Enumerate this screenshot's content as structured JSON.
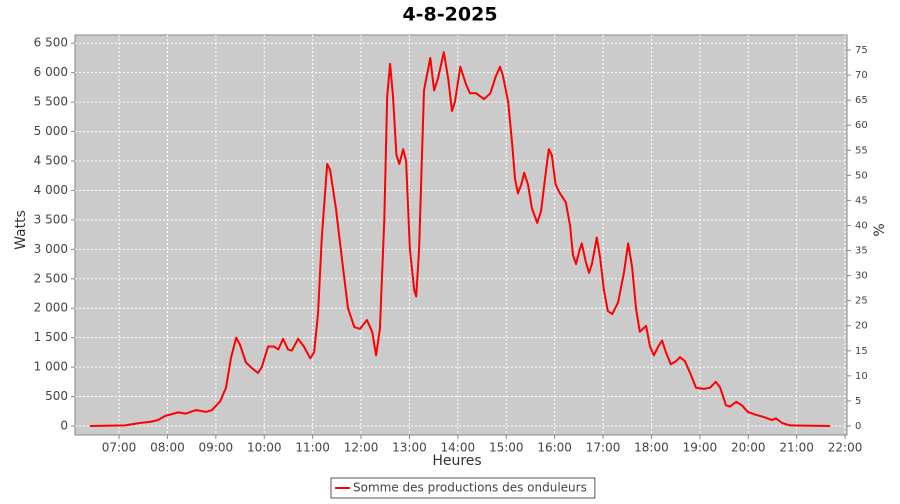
{
  "chart_data": {
    "type": "line",
    "title": "4-8-2025",
    "x_label": "Heures",
    "y_label": "Watts",
    "y2_label": "%",
    "background": "#cbcbcb",
    "grid": true,
    "xlim": [
      6.09,
      22.04
    ],
    "xticks": [
      {
        "value": 7,
        "label": "07:00"
      },
      {
        "value": 8,
        "label": "08:00"
      },
      {
        "value": 9,
        "label": "09:00"
      },
      {
        "value": 10,
        "label": "10:00"
      },
      {
        "value": 11,
        "label": "11:00"
      },
      {
        "value": 12,
        "label": "12:00"
      },
      {
        "value": 13,
        "label": "13:00"
      },
      {
        "value": 14,
        "label": "14:00"
      },
      {
        "value": 15,
        "label": "15:00"
      },
      {
        "value": 16,
        "label": "16:00"
      },
      {
        "value": 17,
        "label": "17:00"
      },
      {
        "value": 18,
        "label": "18:00"
      },
      {
        "value": 19,
        "label": "19:00"
      },
      {
        "value": 20,
        "label": "20:00"
      },
      {
        "value": 21,
        "label": "21:00"
      },
      {
        "value": 22,
        "label": "22:00"
      }
    ],
    "ylim": [
      -153,
      6640
    ],
    "yticks": [
      0,
      500,
      {
        "value": 1000,
        "label": "1 000"
      },
      {
        "value": 1500,
        "label": "1 500"
      },
      {
        "value": 2000,
        "label": "2 000"
      },
      {
        "value": 2500,
        "label": "2 500"
      },
      {
        "value": 3000,
        "label": "3 000"
      },
      {
        "value": 3500,
        "label": "3 500"
      },
      {
        "value": 4000,
        "label": "4 000"
      },
      {
        "value": 4500,
        "label": "4 500"
      },
      {
        "value": 5000,
        "label": "5 000"
      },
      {
        "value": 5500,
        "label": "5 500"
      },
      {
        "value": 6000,
        "label": "6 000"
      },
      {
        "value": 6500,
        "label": "6 500"
      }
    ],
    "y2lim": [
      -1.8,
      78
    ],
    "y2ticks": [
      0,
      5,
      10,
      15,
      20,
      25,
      30,
      35,
      40,
      45,
      50,
      55,
      60,
      65,
      70,
      75
    ],
    "x": [
      6.4,
      7.12,
      7.43,
      7.64,
      7.8,
      7.95,
      8.22,
      8.38,
      8.59,
      8.8,
      8.92,
      9.09,
      9.21,
      9.31,
      9.42,
      9.5,
      9.62,
      9.75,
      9.87,
      9.95,
      10.08,
      10.2,
      10.29,
      10.39,
      10.49,
      10.57,
      10.7,
      10.82,
      10.95,
      11.03,
      11.11,
      11.19,
      11.3,
      11.36,
      11.48,
      11.61,
      11.73,
      11.86,
      11.98,
      12.12,
      12.23,
      12.31,
      12.39,
      12.48,
      12.54,
      12.6,
      12.66,
      12.73,
      12.79,
      12.87,
      12.93,
      13.01,
      13.1,
      13.14,
      13.2,
      13.3,
      13.43,
      13.51,
      13.59,
      13.71,
      13.8,
      13.88,
      13.94,
      14.05,
      14.17,
      14.25,
      14.38,
      14.54,
      14.67,
      14.79,
      14.87,
      14.93,
      15.04,
      15.12,
      15.18,
      15.24,
      15.31,
      15.37,
      15.45,
      15.53,
      15.64,
      15.72,
      15.8,
      15.88,
      15.94,
      16.02,
      16.11,
      16.23,
      16.32,
      16.38,
      16.44,
      16.52,
      16.56,
      16.64,
      16.71,
      16.77,
      16.87,
      16.94,
      17.02,
      17.1,
      17.19,
      17.31,
      17.43,
      17.52,
      17.6,
      17.68,
      17.76,
      17.89,
      17.97,
      18.05,
      18.14,
      18.22,
      18.3,
      18.4,
      18.51,
      18.59,
      18.69,
      18.8,
      18.92,
      19.09,
      19.21,
      19.33,
      19.42,
      19.54,
      19.62,
      19.75,
      19.87,
      19.99,
      20.16,
      20.33,
      20.49,
      20.57,
      20.7,
      20.86,
      21.69
    ],
    "series": [
      {
        "name": "Somme des productions des onduleurs",
        "color": "#ff0000",
        "values": [
          0,
          10,
          50,
          70,
          100,
          170,
          230,
          210,
          270,
          240,
          270,
          420,
          650,
          1150,
          1500,
          1380,
          1080,
          980,
          900,
          1000,
          1350,
          1350,
          1300,
          1480,
          1300,
          1280,
          1480,
          1350,
          1150,
          1250,
          1900,
          3200,
          4450,
          4350,
          3700,
          2800,
          2000,
          1680,
          1650,
          1800,
          1600,
          1200,
          1650,
          3500,
          5600,
          6150,
          5600,
          4600,
          4450,
          4700,
          4500,
          3000,
          2300,
          2200,
          3000,
          5700,
          6250,
          5700,
          5900,
          6350,
          5900,
          5350,
          5500,
          6100,
          5800,
          5650,
          5650,
          5550,
          5650,
          5950,
          6100,
          5950,
          5500,
          4800,
          4200,
          3950,
          4100,
          4300,
          4100,
          3700,
          3450,
          3650,
          4200,
          4700,
          4600,
          4100,
          3950,
          3800,
          3400,
          2900,
          2750,
          3000,
          3100,
          2800,
          2600,
          2750,
          3200,
          2850,
          2300,
          1950,
          1900,
          2100,
          2600,
          3100,
          2700,
          2000,
          1600,
          1700,
          1350,
          1200,
          1350,
          1450,
          1250,
          1050,
          1100,
          1170,
          1100,
          900,
          650,
          630,
          650,
          750,
          650,
          350,
          330,
          410,
          350,
          240,
          190,
          150,
          100,
          130,
          50,
          10,
          0
        ]
      }
    ]
  }
}
